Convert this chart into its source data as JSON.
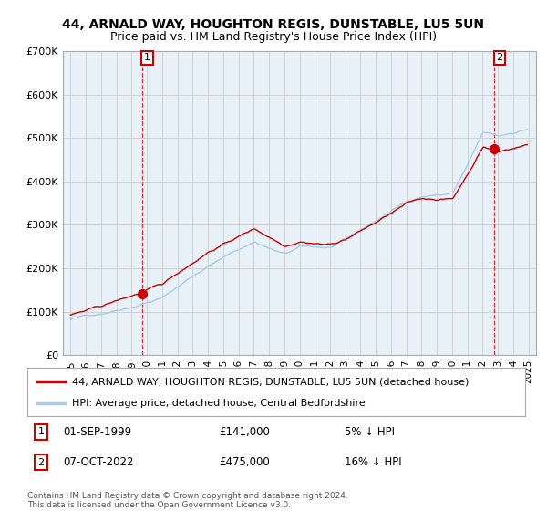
{
  "title": "44, ARNALD WAY, HOUGHTON REGIS, DUNSTABLE, LU5 5UN",
  "subtitle": "Price paid vs. HM Land Registry's House Price Index (HPI)",
  "ylim": [
    0,
    700000
  ],
  "yticks": [
    0,
    100000,
    200000,
    300000,
    400000,
    500000,
    600000,
    700000
  ],
  "ytick_labels": [
    "£0",
    "£100K",
    "£200K",
    "£300K",
    "£400K",
    "£500K",
    "£600K",
    "£700K"
  ],
  "hpi_color": "#a8cce8",
  "price_color": "#cc0000",
  "chart_bg": "#e8f0f8",
  "marker1_year": 1999.67,
  "marker1_price": 141000,
  "marker2_year": 2022.75,
  "marker2_price": 475000,
  "legend_label_red": "44, ARNALD WAY, HOUGHTON REGIS, DUNSTABLE, LU5 5UN (detached house)",
  "legend_label_blue": "HPI: Average price, detached house, Central Bedfordshire",
  "annotation1_num": "1",
  "annotation1_date": "01-SEP-1999",
  "annotation1_price": "£141,000",
  "annotation1_hpi": "5% ↓ HPI",
  "annotation2_num": "2",
  "annotation2_date": "07-OCT-2022",
  "annotation2_price": "£475,000",
  "annotation2_hpi": "16% ↓ HPI",
  "footer": "Contains HM Land Registry data © Crown copyright and database right 2024.\nThis data is licensed under the Open Government Licence v3.0.",
  "background_color": "#ffffff",
  "grid_color": "#cccccc"
}
